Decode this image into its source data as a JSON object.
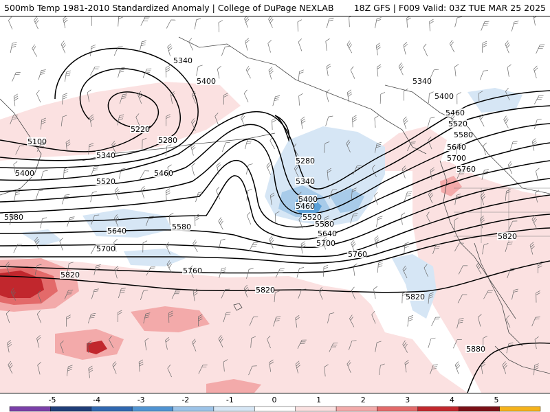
{
  "header": {
    "title_left": "500mb Temp 1981-2010 Standardized Anomaly | College of DuPage NEXLAB",
    "title_right": "18Z GFS | F009 Valid: 03Z TUE MAR 25 2025"
  },
  "colors": {
    "background": "#ffffff",
    "contour": "#000000",
    "coastline": "#4a4a4a",
    "barb": "#6a6a6a",
    "pos1": "#fbe1e1",
    "pos2": "#f3aaaa",
    "pos3": "#e36a6a",
    "pos4": "#c1272d",
    "neg1": "#d6e6f5",
    "neg2": "#a8cbe9",
    "neg3": "#5aa0d8"
  },
  "contours": [
    {
      "label": "5100"
    },
    {
      "label": "5220"
    },
    {
      "label": "5280"
    },
    {
      "label": "5280"
    },
    {
      "label": "5340"
    },
    {
      "label": "5340"
    },
    {
      "label": "5340"
    },
    {
      "label": "5340"
    },
    {
      "label": "5400"
    },
    {
      "label": "5400"
    },
    {
      "label": "5400"
    },
    {
      "label": "5400"
    },
    {
      "label": "5460"
    },
    {
      "label": "5460"
    },
    {
      "label": "5460"
    },
    {
      "label": "5520"
    },
    {
      "label": "5520"
    },
    {
      "label": "5520"
    },
    {
      "label": "5580"
    },
    {
      "label": "5580"
    },
    {
      "label": "5580"
    },
    {
      "label": "5580"
    },
    {
      "label": "5640"
    },
    {
      "label": "5640"
    },
    {
      "label": "5640"
    },
    {
      "label": "5700"
    },
    {
      "label": "5700"
    },
    {
      "label": "5700"
    },
    {
      "label": "5760"
    },
    {
      "label": "5760"
    },
    {
      "label": "5760"
    },
    {
      "label": "5820"
    },
    {
      "label": "5820"
    },
    {
      "label": "5820"
    },
    {
      "label": "5820"
    },
    {
      "label": "5880"
    }
  ],
  "colorbar": {
    "ticks": [
      "-5",
      "-4",
      "-3",
      "-2",
      "-1",
      "0",
      "1",
      "2",
      "3",
      "4",
      "5"
    ],
    "colors": [
      "#7a3fa8",
      "#1e3d78",
      "#2f67b0",
      "#4f93d2",
      "#9cc3e8",
      "#d6e6f5",
      "#ffffff",
      "#fbe1e1",
      "#f3aaaa",
      "#e36a6a",
      "#c1272d",
      "#7a0f16",
      "#f5b21a"
    ]
  }
}
